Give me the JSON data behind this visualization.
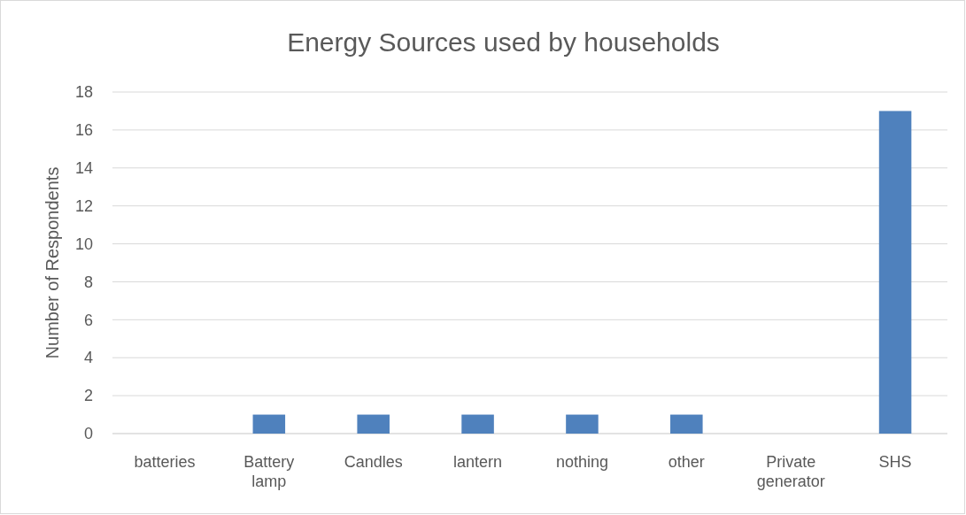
{
  "chart_data": {
    "type": "bar",
    "title": "Energy Sources used by households",
    "ylabel": "Number of Respondents",
    "categories": [
      "batteries",
      "Battery lamp",
      "Candles",
      "lantern",
      "nothing",
      "other",
      "Private generator",
      "SHS"
    ],
    "values": [
      0,
      1,
      1,
      1,
      1,
      1,
      0,
      17
    ],
    "color": "#4f81bd",
    "ylim": [
      0,
      18
    ],
    "yticks": [
      0,
      2,
      4,
      6,
      8,
      10,
      12,
      14,
      16,
      18
    ],
    "grid": "y"
  }
}
